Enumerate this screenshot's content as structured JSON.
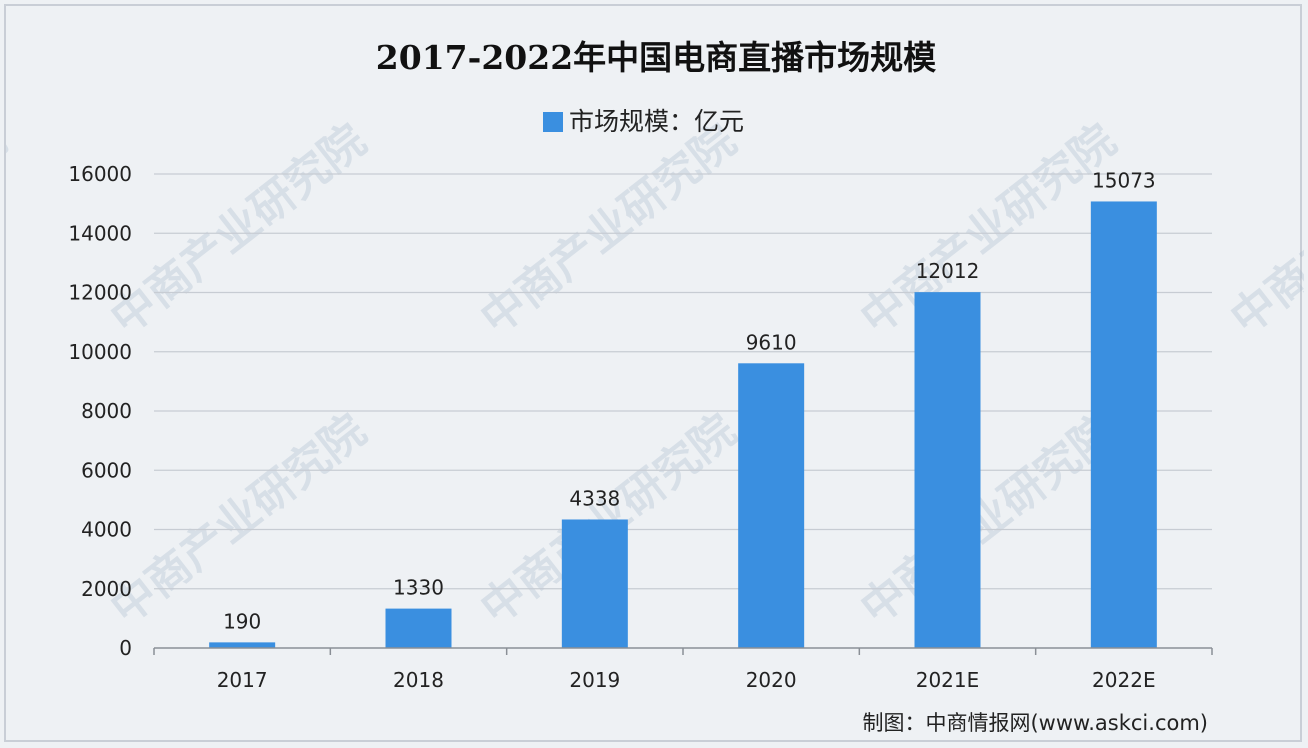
{
  "chart_data": {
    "type": "bar",
    "title": "2017-2022年中国电商直播市场规模",
    "legend": "市场规模：亿元",
    "legend_position": "top-center",
    "categories": [
      "2017",
      "2018",
      "2019",
      "2020",
      "2021E",
      "2022E"
    ],
    "series": [
      {
        "name": "市场规模：亿元",
        "values": [
          190,
          1330,
          4338,
          9610,
          12012,
          15073
        ]
      }
    ],
    "ylim": [
      0,
      16000
    ],
    "yticks": [
      0,
      2000,
      4000,
      6000,
      8000,
      10000,
      12000,
      14000,
      16000
    ],
    "grid": true,
    "colors": {
      "bar": "#3a8fe0",
      "grid": "#c7ccd3",
      "axis": "#8a8f96"
    }
  },
  "source": "制图：中商情报网(www.askci.com)",
  "watermark": "中商产业研究院"
}
